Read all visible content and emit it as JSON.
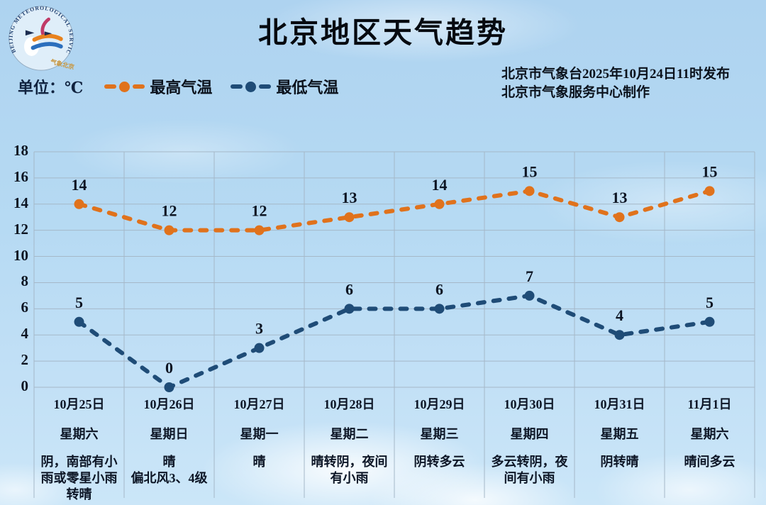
{
  "header": {
    "title": "北京地区天气趋势",
    "unit_label": "单位：℃",
    "issued_line1": "北京市气象台2025年10月24日11时发布",
    "issued_line2": "北京市气象服务中心制作",
    "logo": {
      "ring_text": "BEIJING METEOROLOGICAL SERVICE",
      "bottom_text": "气象北京"
    }
  },
  "legend": [
    {
      "label": "最高气温",
      "color": "#e0721c"
    },
    {
      "label": "最低气温",
      "color": "#1f4c77"
    }
  ],
  "chart_data": {
    "type": "line",
    "title": "北京地区天气趋势",
    "unit": "℃",
    "line_style": "dashed",
    "grid": true,
    "legend_position": "top-left",
    "ylim": [
      0,
      18
    ],
    "ytick_step": 2,
    "categories": [
      "10月25日",
      "10月26日",
      "10月27日",
      "10月28日",
      "10月29日",
      "10月30日",
      "10月31日",
      "11月1日"
    ],
    "weekdays": [
      "星期六",
      "星期日",
      "星期一",
      "星期二",
      "星期三",
      "星期四",
      "星期五",
      "星期六"
    ],
    "weather": [
      [
        "阴，南部有小",
        "雨或零星小雨",
        "转晴"
      ],
      [
        "晴",
        "偏北风3、4级"
      ],
      [
        "晴"
      ],
      [
        "晴转阴，夜间",
        "有小雨"
      ],
      [
        "阴转多云"
      ],
      [
        "多云转阴，夜",
        "间有小雨"
      ],
      [
        "阴转晴"
      ],
      [
        "晴间多云"
      ]
    ],
    "series": [
      {
        "name": "最高气温",
        "color": "#e0721c",
        "values": [
          14,
          12,
          12,
          13,
          14,
          15,
          13,
          15
        ]
      },
      {
        "name": "最低气温",
        "color": "#1f4c77",
        "values": [
          5,
          0,
          3,
          6,
          6,
          7,
          4,
          5
        ]
      }
    ],
    "colors": {
      "grid": "#a5b8c8",
      "label_text": "#0c1422"
    }
  }
}
